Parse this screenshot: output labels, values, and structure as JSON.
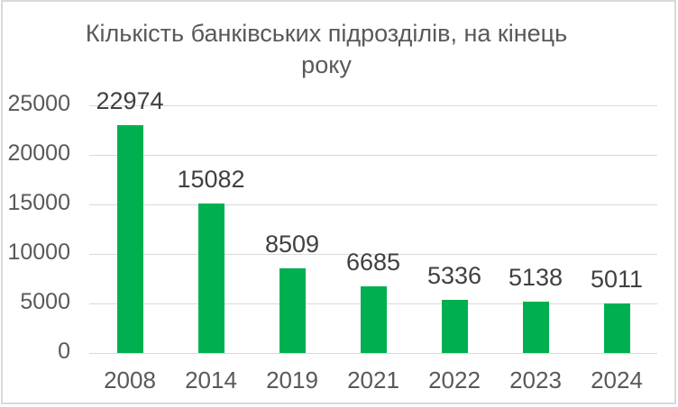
{
  "chart_data": {
    "type": "bar",
    "title": "Кількість банківських підрозділів, на кінець року",
    "title_lines": [
      "Кількість банківських підрозділів, на кінець",
      "року"
    ],
    "categories": [
      "2008",
      "2014",
      "2019",
      "2021",
      "2022",
      "2023",
      "2024"
    ],
    "values": [
      22974,
      15082,
      8509,
      6685,
      5336,
      5138,
      5011
    ],
    "yticks": [
      0,
      5000,
      10000,
      15000,
      20000,
      25000
    ],
    "ylim": [
      0,
      25000
    ],
    "xlabel": "",
    "ylabel": "",
    "grid": true,
    "legend": false,
    "bar_color": "#00B050",
    "gridline_color": "#D9D9D9",
    "border_color": "#D9D9D9",
    "axis_label_color": "#595959",
    "title_color": "#595959",
    "data_label_color": "#404040"
  }
}
